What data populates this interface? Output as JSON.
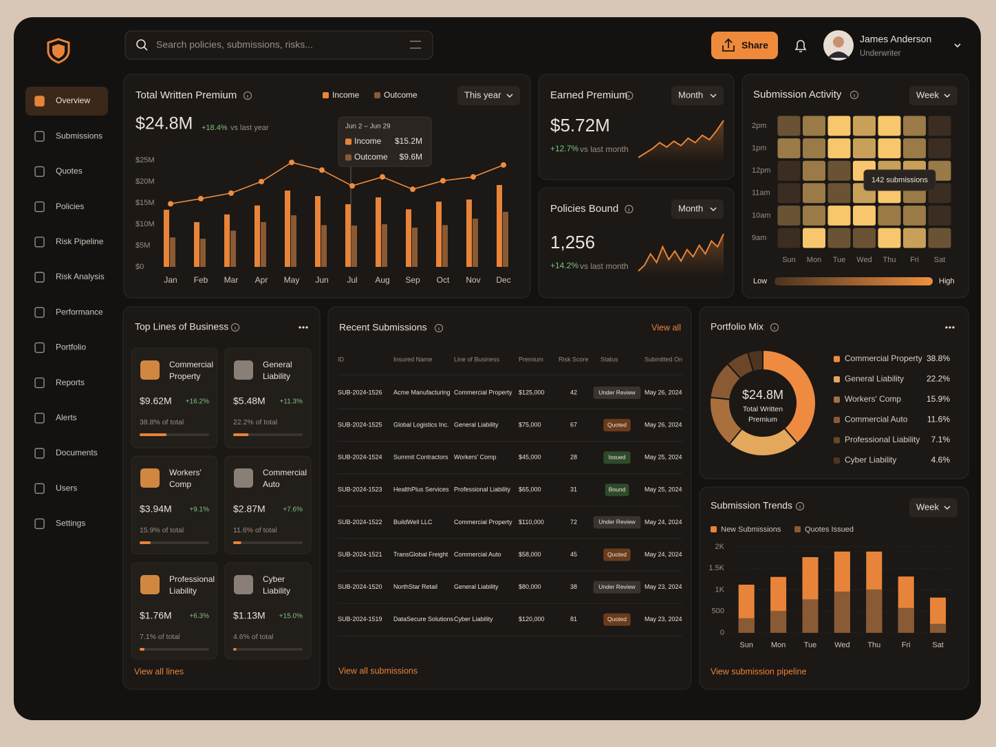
{
  "search": {
    "placeholder": "Search policies, submissions, risks..."
  },
  "header": {
    "share": "Share",
    "user_name": "James Anderson",
    "user_role": "Underwriter"
  },
  "nav": {
    "active": 0,
    "items": [
      "Overview",
      "Submissions",
      "Quotes",
      "Policies",
      "Risk Pipeline",
      "Risk Analysis",
      "Performance",
      "Portfolio",
      "Reports",
      "Alerts",
      "Documents",
      "Users",
      "Settings"
    ]
  },
  "written_premium": {
    "title": "Total Written Premium",
    "value": "$24.8M",
    "change": "+18.4%",
    "change_note": "vs last year",
    "period": "This year",
    "tooltip": {
      "range": "Jun 2 – Jun 29",
      "rows": [
        {
          "name": "Income",
          "value": "$15.2M"
        },
        {
          "name": "Outcome",
          "value": "$9.6M"
        }
      ]
    },
    "chart": {
      "type": "bar",
      "grid": false,
      "categories": [
        "Jan",
        "Feb",
        "Mar",
        "Apr",
        "May",
        "Jun",
        "Jul",
        "Aug",
        "Sep",
        "Oct",
        "Nov",
        "Dec"
      ],
      "ylim": [
        0,
        25
      ],
      "yticks": [
        {
          "value": 0,
          "label": "$0"
        },
        {
          "value": 5,
          "label": "$5M"
        },
        {
          "value": 10,
          "label": "$10M"
        },
        {
          "value": 15,
          "label": "$15M"
        },
        {
          "value": 20,
          "label": "$20M"
        },
        {
          "value": 25,
          "label": "$25M"
        }
      ],
      "series": [
        {
          "name": "Income",
          "color": "#e8843a",
          "values": [
            13.4,
            10.5,
            12.3,
            14.4,
            17.9,
            16.6,
            14.7,
            16.3,
            13.5,
            15.3,
            15.8,
            19.2
          ]
        },
        {
          "name": "Outcome",
          "color": "#8a5a34",
          "values": [
            6.9,
            6.6,
            8.5,
            10.5,
            12.1,
            9.8,
            9.7,
            10.0,
            9.2,
            9.8,
            11.3,
            12.9
          ]
        }
      ],
      "trend": {
        "color": "#f08c3e",
        "values": [
          14.8,
          16.0,
          17.3,
          20.0,
          24.5,
          22.7,
          19.0,
          21.1,
          18.2,
          20.2,
          21.1,
          23.9
        ]
      }
    }
  },
  "earned_premium": {
    "title": "Earned Premium",
    "period": "Month",
    "value": "$5.72M",
    "change": "+12.7%",
    "change_note": "vs last month",
    "sparkline": {
      "type": "line",
      "color": "#e8843a",
      "values": [
        6,
        9,
        12,
        16,
        13,
        17,
        14,
        19,
        16,
        21,
        18,
        24,
        31
      ]
    }
  },
  "policies_bound": {
    "title": "Policies Bound",
    "period": "Month",
    "value": "1,256",
    "change": "+14.2%",
    "change_note": "vs last month",
    "sparkline": {
      "type": "line",
      "color": "#e8843a",
      "values": [
        5,
        9,
        17,
        11,
        22,
        13,
        19,
        12,
        20,
        15,
        23,
        17,
        26,
        22,
        31
      ]
    }
  },
  "submission_activity": {
    "title": "Submission Activity",
    "period": "Week",
    "tooltip": "142 submissions",
    "legend_low": "Low",
    "legend_high": "High",
    "chart": {
      "type": "heatmap",
      "low_color": "#3b2d21",
      "high_color": "#f8c66c",
      "rows": [
        "2pm",
        "1pm",
        "12pm",
        "11am",
        "10am",
        "9am"
      ],
      "columns": [
        "Sun",
        "Mon",
        "Tue",
        "Wed",
        "Thu",
        "Fri",
        "Sat"
      ],
      "values": [
        [
          2,
          3,
          5,
          4,
          5,
          3,
          1
        ],
        [
          3,
          3,
          5,
          4,
          5,
          3,
          1
        ],
        [
          1,
          3,
          2,
          5,
          4,
          4,
          3
        ],
        [
          1,
          3,
          2,
          4,
          5,
          3,
          1
        ],
        [
          2,
          3,
          5,
          5,
          3,
          3,
          1
        ],
        [
          1,
          5,
          2,
          2,
          5,
          4,
          2
        ]
      ]
    }
  },
  "top_lines": {
    "title": "Top Lines of Business",
    "link": "View all lines",
    "cards": [
      {
        "name": "Commercial Property",
        "value": "$9.62M",
        "change": "+16.2%",
        "share": "38.8% of total"
      },
      {
        "name": "General Liability",
        "value": "$5.48M",
        "change": "+11.3%",
        "share": "22.2% of total"
      },
      {
        "name": "Workers' Comp",
        "value": "$3.94M",
        "change": "+9.1%",
        "share": "15.9% of total"
      },
      {
        "name": "Commercial Auto",
        "value": "$2.87M",
        "change": "+7.6%",
        "share": "11.6% of total"
      },
      {
        "name": "Professional Liability",
        "value": "$1.76M",
        "change": "+6.3%",
        "share": "7.1% of total"
      },
      {
        "name": "Cyber Liability",
        "value": "$1.13M",
        "change": "+15.0%",
        "share": "4.6% of total"
      }
    ]
  },
  "recent_submissions": {
    "title": "Recent Submissions",
    "link_top": "View all",
    "link": "View all submissions",
    "columns": [
      "ID",
      "Insured Name",
      "Line of Business",
      "Premium",
      "Risk Score",
      "Status",
      "Submitted On"
    ],
    "rows": [
      [
        "SUB-2024-1526",
        "Acme Manufacturing",
        "Commercial Property",
        "$125,000",
        42,
        "Under Review",
        "May 26, 2024"
      ],
      [
        "SUB-2024-1525",
        "Global Logistics Inc.",
        "General Liability",
        "$75,000",
        67,
        "Quoted",
        "May 26, 2024"
      ],
      [
        "SUB-2024-1524",
        "Summit Contractors",
        "Workers' Comp",
        "$45,000",
        28,
        "Issued",
        "May 25, 2024"
      ],
      [
        "SUB-2024-1523",
        "HealthPlus Services",
        "Professional Liability",
        "$65,000",
        31,
        "Bound",
        "May 25, 2024"
      ],
      [
        "SUB-2024-1522",
        "BuildWell LLC",
        "Commercial Property",
        "$110,000",
        72,
        "Under Review",
        "May 24, 2024"
      ],
      [
        "SUB-2024-1521",
        "TransGlobal Freight",
        "Commercial Auto",
        "$58,000",
        45,
        "Quoted",
        "May 24, 2024"
      ],
      [
        "SUB-2024-1520",
        "NorthStar Retail",
        "General Liability",
        "$80,000",
        38,
        "Under Review",
        "May 23, 2024"
      ],
      [
        "SUB-2024-1519",
        "DataSecure Solutions",
        "Cyber Liability",
        "$120,000",
        81,
        "Quoted",
        "May 23, 2024"
      ]
    ],
    "status_colors": [
      "#3a3430",
      "#6a3c1c",
      "#2f4a2a",
      "#2f4a2a",
      "#3a3430",
      "#6a3c1c",
      "#3a3430",
      "#6a3c1c"
    ]
  },
  "portfolio_mix": {
    "title": "Portfolio Mix",
    "center_value": "$24.8M",
    "center_label": "Total Written Premium",
    "chart": {
      "type": "pie",
      "categories": [
        "Commercial Property",
        "General Liability",
        "Workers' Comp",
        "Commercial Auto",
        "Professional Liability",
        "Cyber Liability"
      ],
      "values": [
        38.8,
        22.2,
        15.9,
        11.6,
        7.1,
        4.6
      ],
      "value_labels": [
        "38.8%",
        "22.2%",
        "15.9%",
        "11.6%",
        "7.1%",
        "4.6%"
      ],
      "colors": [
        "#ee8b40",
        "#e3a85c",
        "#a9703e",
        "#8a5a34",
        "#6b4628",
        "#4f3520"
      ]
    }
  },
  "submission_trends": {
    "title": "Submission Trends",
    "period": "Week",
    "link": "View submission pipeline",
    "chart": {
      "type": "bar",
      "grid": true,
      "categories": [
        "Sun",
        "Mon",
        "Tue",
        "Wed",
        "Thu",
        "Fri",
        "Sat"
      ],
      "ylim": [
        0,
        2000
      ],
      "yticks": [
        0,
        500,
        {
          "value": 1000,
          "label": "1K"
        },
        {
          "value": 1500,
          "label": "1.5K"
        },
        {
          "value": 2000,
          "label": "2K"
        }
      ],
      "series": [
        {
          "name": "New Submissions",
          "color": "#e8843a",
          "values": [
            1120,
            1300,
            1760,
            1890,
            1890,
            1310,
            820
          ]
        },
        {
          "name": "Quotes Issued",
          "color": "#8a5a34",
          "values": [
            340,
            510,
            780,
            960,
            1010,
            580,
            210
          ]
        }
      ]
    }
  }
}
